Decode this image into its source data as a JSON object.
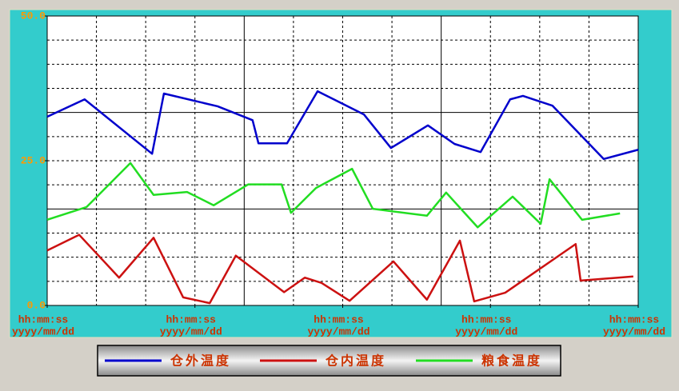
{
  "chart_data": {
    "type": "line",
    "xlim": [
      0,
      12
    ],
    "xticks": [
      {
        "value": 0,
        "label": [
          "hh:mm:ss",
          "yyyy/mm/dd"
        ]
      },
      {
        "value": 3,
        "label": [
          "hh:mm:ss",
          "yyyy/mm/dd"
        ]
      },
      {
        "value": 6,
        "label": [
          "hh:mm:ss",
          "yyyy/mm/dd"
        ]
      },
      {
        "value": 9,
        "label": [
          "hh:mm:ss",
          "yyyy/mm/dd"
        ]
      },
      {
        "value": 12,
        "label": [
          "hh:mm:ss",
          "yyyy/mm/dd"
        ]
      }
    ],
    "ylim": [
      0,
      50
    ],
    "yticks": [
      {
        "value": 0,
        "label": "0.0"
      },
      {
        "value": 25,
        "label": "25.0"
      },
      {
        "value": 50,
        "label": "50.0"
      }
    ],
    "grid": true,
    "grid_divisions": {
      "x": 12,
      "y": 12,
      "major_every": 4
    },
    "legend": "bottom",
    "series": [
      {
        "name": "仓外温度",
        "color": "#0000cc",
        "x": [
          0,
          0.76,
          2.13,
          2.37,
          3.46,
          4.17,
          4.29,
          4.87,
          5.49,
          6.43,
          6.98,
          7.73,
          8.27,
          8.8,
          9.4,
          9.66,
          10.26,
          11.3,
          12
        ],
        "values": [
          32.6,
          35.6,
          26.2,
          36.6,
          34.4,
          32.0,
          28.0,
          28.0,
          37.0,
          33.0,
          27.2,
          31.1,
          27.9,
          26.5,
          35.6,
          36.2,
          34.5,
          25.3,
          26.9
        ]
      },
      {
        "name": "仓内温度",
        "color": "#cc1111",
        "x": [
          0,
          0.65,
          1.46,
          2.16,
          2.76,
          3.3,
          3.83,
          4.81,
          5.23,
          5.57,
          6.14,
          7.03,
          7.71,
          8.38,
          8.67,
          9.3,
          10.73,
          10.83,
          11.9
        ],
        "values": [
          9.5,
          12.2,
          4.8,
          11.7,
          1.4,
          0.4,
          8.6,
          2.3,
          4.8,
          3.9,
          0.8,
          7.6,
          1.0,
          11.2,
          0.7,
          2.2,
          10.6,
          4.3,
          5.0
        ]
      },
      {
        "name": "粮食温度",
        "color": "#22dd22",
        "x": [
          0,
          0.8,
          1.69,
          2.16,
          2.84,
          3.38,
          4.08,
          4.76,
          4.95,
          5.46,
          6.19,
          6.61,
          7.71,
          8.1,
          8.74,
          9.45,
          10.02,
          10.2,
          10.86,
          11.63
        ],
        "values": [
          14.8,
          17.0,
          24.6,
          19.1,
          19.6,
          17.3,
          20.9,
          20.9,
          16.0,
          20.3,
          23.6,
          16.7,
          15.5,
          19.5,
          13.5,
          18.8,
          14.1,
          21.8,
          14.8,
          15.9
        ]
      }
    ]
  }
}
